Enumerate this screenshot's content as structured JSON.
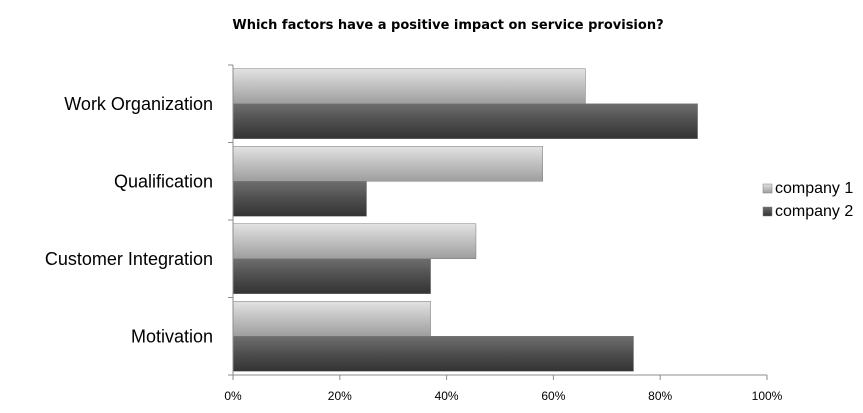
{
  "chart_data": {
    "type": "bar",
    "orientation": "horizontal",
    "title": "Which factors have a positive impact on service provision?",
    "xlabel": "",
    "ylabel": "",
    "categories": [
      "Work Organization",
      "Qualification",
      "Customer Integration",
      "Motivation"
    ],
    "series": [
      {
        "name": "company 1",
        "values": [
          66,
          58,
          45.5,
          37
        ],
        "color": "#bcbcbc"
      },
      {
        "name": "company 2",
        "values": [
          87,
          25,
          37,
          75
        ],
        "color": "#555555"
      }
    ],
    "xlim": [
      0,
      100
    ],
    "x_ticks": [
      "0%",
      "20%",
      "40%",
      "60%",
      "80%",
      "100%"
    ],
    "grid": false,
    "legend_position": "right"
  }
}
